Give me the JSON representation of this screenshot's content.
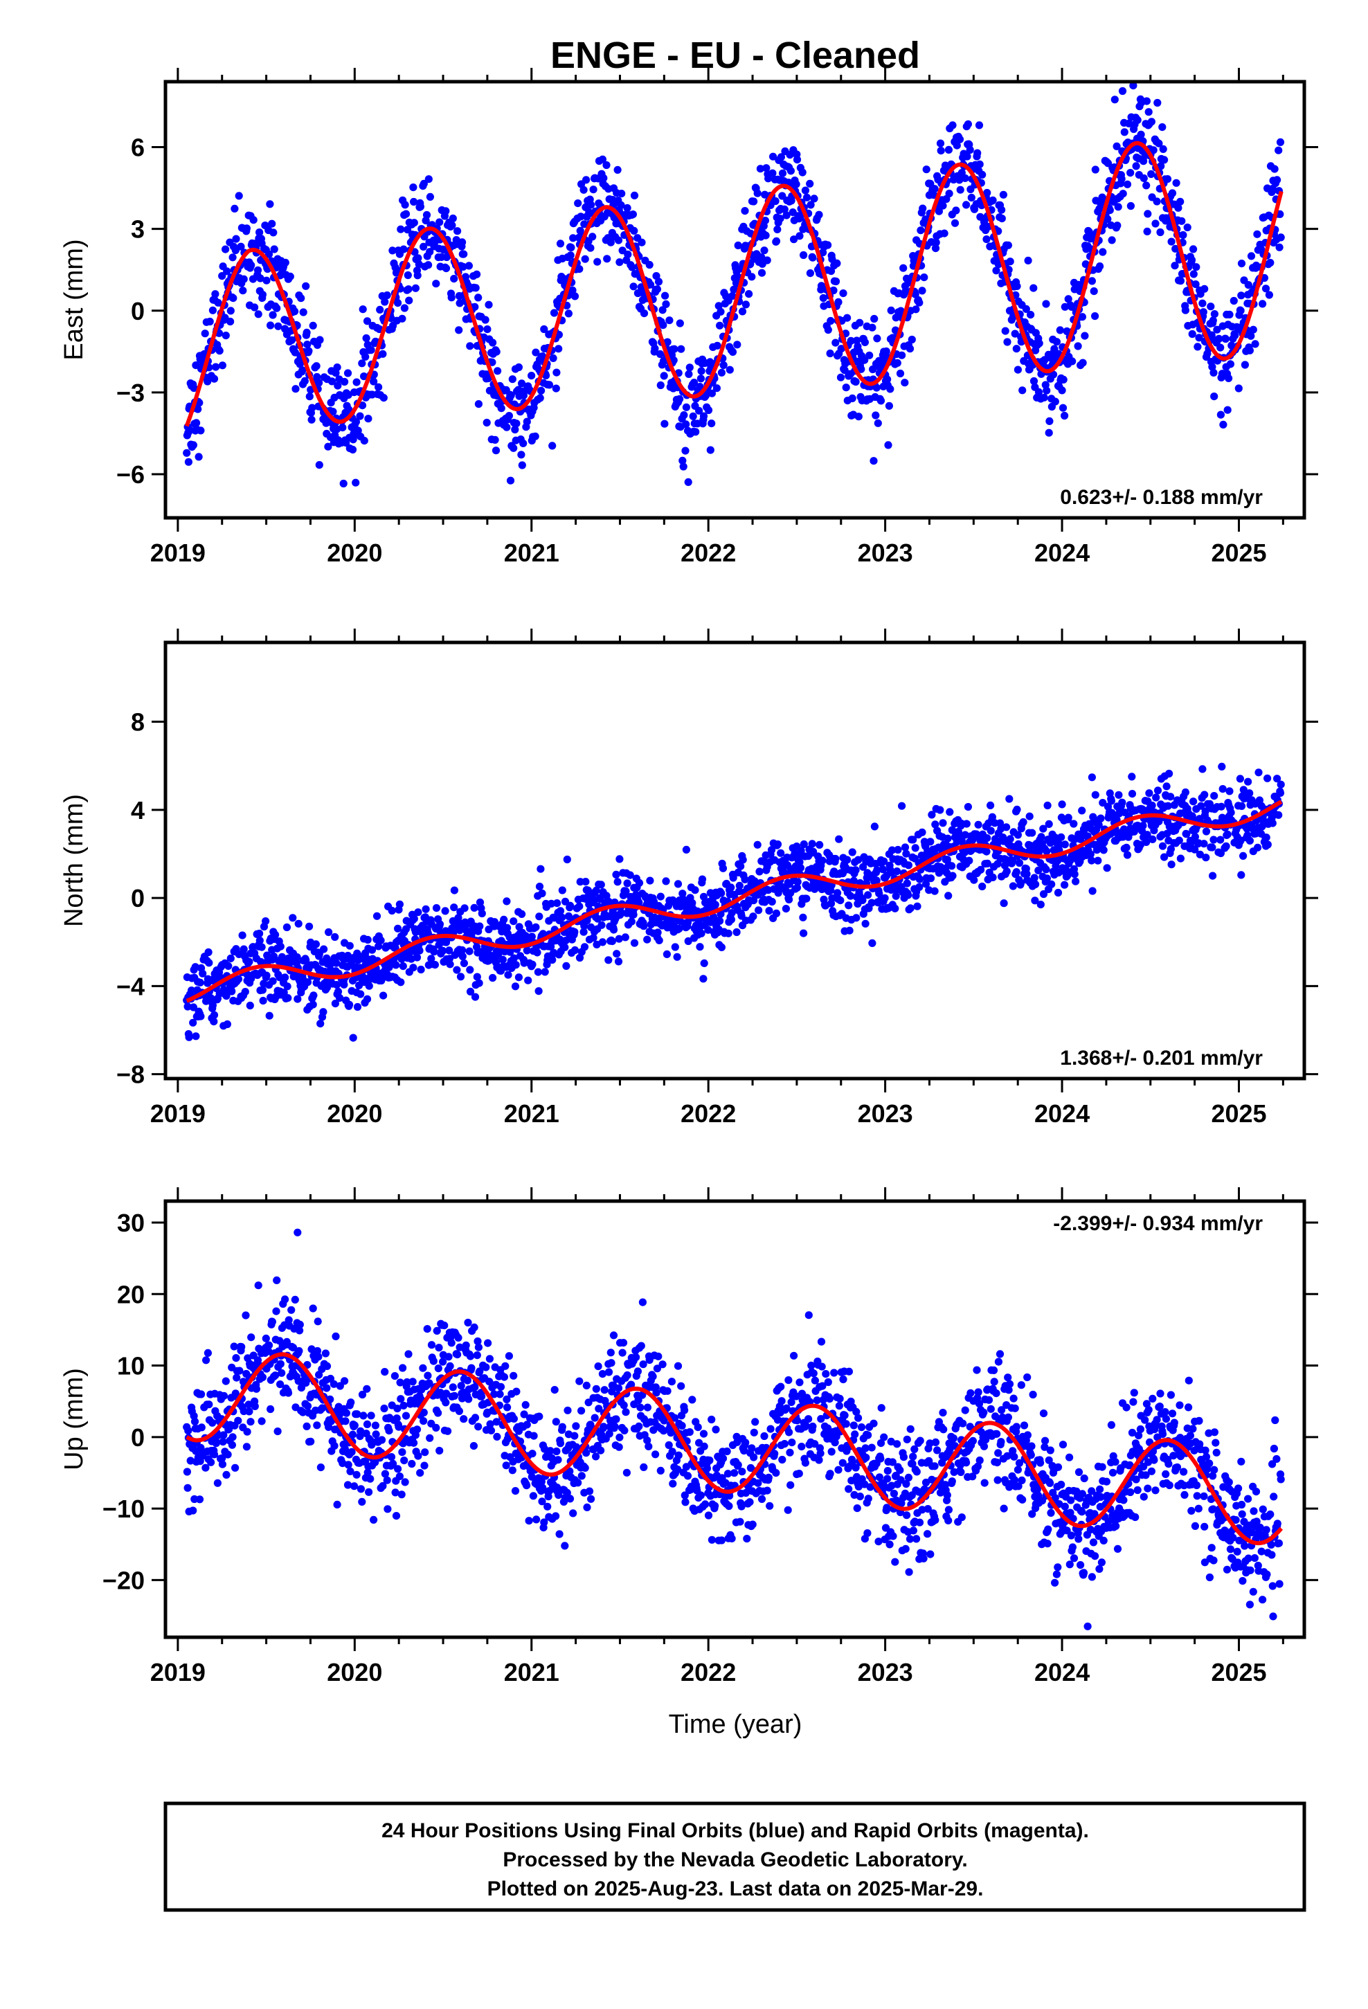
{
  "title": "ENGE  - EU - Cleaned",
  "x_axis_label": "Time (year)",
  "colors": {
    "points": "#0000ff",
    "fit": "#ff0000",
    "frame": "#000000"
  },
  "chart_data": [
    {
      "type": "scatter",
      "panel": "east",
      "ylabel": "East (mm)",
      "rate_text": "0.623+/- 0.188 mm/yr",
      "xlim": [
        2018.93,
        2025.37
      ],
      "ylim": [
        -7.6,
        8.4
      ],
      "xticks": [
        2019,
        2020,
        2021,
        2022,
        2023,
        2024,
        2025
      ],
      "yticks": [
        -6,
        -3,
        0,
        3,
        6
      ],
      "fit": {
        "offset": -1.3,
        "rate": 0.623,
        "amplitude": 3.2,
        "peak_phase": 0.42,
        "drift_2019": -2.2,
        "amp_growth": 0.05
      },
      "scatter_sd": 0.95,
      "series": [
        {
          "name": "Final Orbits (blue)",
          "marker": "dot",
          "start": 2019.05,
          "end": 2025.24
        }
      ]
    },
    {
      "type": "scatter",
      "panel": "north",
      "ylabel": "North (mm)",
      "rate_text": "1.368+/- 0.201 mm/yr",
      "xlim": [
        2018.93,
        2025.37
      ],
      "ylim": [
        -8.2,
        11.6
      ],
      "xticks": [
        2019,
        2020,
        2021,
        2022,
        2023,
        2024,
        2025
      ],
      "yticks": [
        -8,
        -4,
        0,
        4,
        8
      ],
      "fit": {
        "offset": -4.3,
        "rate": 1.368,
        "amplitude": 0.55,
        "peak_phase": 0.45
      },
      "scatter_sd": 0.85,
      "series": [
        {
          "name": "Final Orbits (blue)",
          "marker": "dot",
          "start": 2019.05,
          "end": 2025.24
        }
      ]
    },
    {
      "type": "scatter",
      "panel": "up",
      "ylabel": "Up (mm)",
      "rate_text": "-2.399+/- 0.934 mm/yr",
      "xlim": [
        2018.93,
        2025.37
      ],
      "ylim": [
        -28,
        33
      ],
      "xticks": [
        2019,
        2020,
        2021,
        2022,
        2023,
        2024,
        2025
      ],
      "yticks": [
        -20,
        -10,
        0,
        10,
        20,
        30
      ],
      "fit": {
        "offset": 6.4,
        "rate": -2.399,
        "amplitude": 6.6,
        "peak_phase": 0.6
      },
      "scatter_sd": 4.2,
      "series": [
        {
          "name": "Final Orbits (blue)",
          "marker": "dot",
          "start": 2019.05,
          "end": 2025.24
        }
      ]
    }
  ],
  "footer": {
    "line1": "24 Hour Positions Using Final Orbits (blue) and Rapid Orbits (magenta).",
    "line2": "Processed by the Nevada Geodetic Laboratory.",
    "line3": "Plotted on 2025-Aug-23. Last data on 2025-Mar-29."
  }
}
